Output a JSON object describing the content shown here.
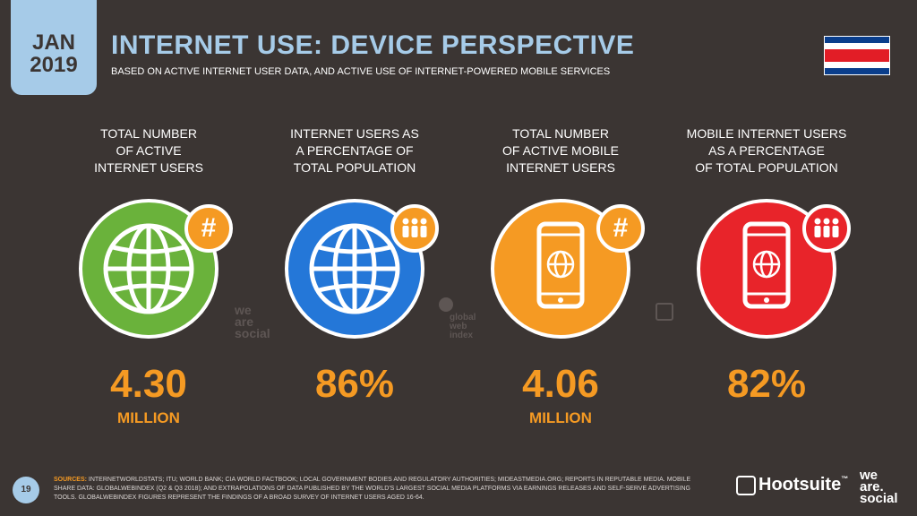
{
  "header": {
    "month": "JAN",
    "year": "2019",
    "title": "INTERNET USE: DEVICE PERSPECTIVE",
    "subtitle": "BASED ON ACTIVE INTERNET USER DATA, AND ACTIVE USE OF INTERNET-POWERED MOBILE SERVICES"
  },
  "stats": [
    {
      "label_lines": [
        "TOTAL NUMBER",
        "OF ACTIVE",
        "INTERNET USERS"
      ],
      "value": "4.30",
      "unit": "MILLION",
      "color": "#6ab23b",
      "badge": "#",
      "icon": "globe-icon"
    },
    {
      "label_lines": [
        "INTERNET USERS AS",
        "A PERCENTAGE OF",
        "TOTAL POPULATION"
      ],
      "value": "86%",
      "unit": "",
      "color": "#2477d8",
      "badge": "people",
      "icon": "globe-icon"
    },
    {
      "label_lines": [
        "TOTAL NUMBER",
        "OF ACTIVE MOBILE",
        "INTERNET USERS"
      ],
      "value": "4.06",
      "unit": "MILLION",
      "color": "#f59a23",
      "badge": "#",
      "icon": "smartphone-icon"
    },
    {
      "label_lines": [
        "MOBILE INTERNET USERS",
        "AS A PERCENTAGE",
        "OF TOTAL POPULATION"
      ],
      "value": "82%",
      "unit": "",
      "color": "#e8242a",
      "badge": "people",
      "icon": "smartphone-icon"
    }
  ],
  "watermarks": {
    "wearesocial": [
      "we",
      "are",
      "social"
    ],
    "gwi": [
      "global",
      "web",
      "index"
    ]
  },
  "footer": {
    "page": "19",
    "sources_label": "SOURCES:",
    "sources_text": "INTERNETWORLDSTATS; ITU; WORLD BANK; CIA WORLD FACTBOOK; LOCAL GOVERNMENT BODIES AND REGULATORY AUTHORITIES; MIDEASTMEDIA.ORG; REPORTS IN REPUTABLE MEDIA. MOBILE SHARE DATA: GLOBALWEBINDEX (Q2 & Q3 2018); AND EXTRAPOLATIONS OF DATA PUBLISHED BY THE WORLD'S LARGEST SOCIAL MEDIA PLATFORMS VIA EARNINGS RELEASES AND SELF-SERVE ADVERTISING TOOLS. GLOBALWEBINDEX FIGURES REPRESENT THE FINDINGS OF A BROAD SURVEY OF INTERNET USERS AGED 16-64.",
    "hootsuite": "Hootsuite",
    "tm": "™",
    "was_lines": [
      "we",
      "are.",
      "social"
    ]
  }
}
